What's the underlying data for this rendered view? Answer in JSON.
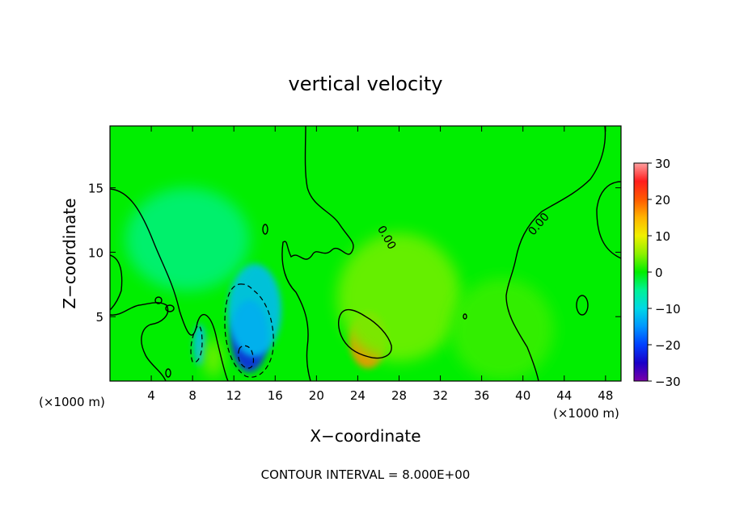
{
  "chart_data": {
    "type": "heatmap",
    "title": "vertical velocity",
    "xlabel": "X−coordinate",
    "ylabel": "Z−coordinate",
    "x_unit_left": "(×1000 m)",
    "x_unit_right": "(×1000 m)",
    "footer": "CONTOUR INTERVAL = 8.000E+00",
    "xlim": [
      0,
      49.5
    ],
    "ylim": [
      0,
      19.8
    ],
    "x_ticks": [
      4,
      8,
      12,
      16,
      20,
      24,
      28,
      32,
      36,
      40,
      44,
      48
    ],
    "y_ticks": [
      5,
      10,
      15
    ],
    "colorbar": {
      "range": [
        -30,
        30
      ],
      "ticks": [
        30,
        20,
        10,
        0,
        -10,
        -20,
        -30
      ],
      "tick_labels": [
        "30",
        "20",
        "10",
        "0",
        "−10",
        "−20",
        "−30"
      ],
      "stops": [
        {
          "v": -30,
          "color": "#7b00a8"
        },
        {
          "v": -25,
          "color": "#1a00c8"
        },
        {
          "v": -20,
          "color": "#0040ff"
        },
        {
          "v": -15,
          "color": "#0096ff"
        },
        {
          "v": -10,
          "color": "#00d7e6"
        },
        {
          "v": -5,
          "color": "#00f296"
        },
        {
          "v": 0,
          "color": "#00ee00"
        },
        {
          "v": 5,
          "color": "#8cf000"
        },
        {
          "v": 10,
          "color": "#f0f000"
        },
        {
          "v": 15,
          "color": "#ffb400"
        },
        {
          "v": 20,
          "color": "#ff5a00"
        },
        {
          "v": 25,
          "color": "#ff1e1e"
        },
        {
          "v": 30,
          "color": "#ffa0a0"
        }
      ]
    },
    "contour_labels": [
      {
        "text": "0.00",
        "x": 26.5,
        "y": 11.0,
        "angle": 60
      },
      {
        "text": "0.00",
        "x": 41.8,
        "y": 12.0,
        "angle": -50
      }
    ],
    "features": [
      {
        "x": 13.5,
        "z": 3.5,
        "value": -22,
        "sx": 1.8,
        "sz": 2.8
      },
      {
        "x": 14.0,
        "z": 5.5,
        "value": -12,
        "sx": 2.6,
        "sz": 3.6
      },
      {
        "x": 8.7,
        "z": 2.8,
        "value": -12,
        "sx": 0.6,
        "sz": 1.6
      },
      {
        "x": 7.5,
        "z": 11.0,
        "value": -4,
        "sx": 6,
        "sz": 4
      },
      {
        "x": 25.0,
        "z": 3.2,
        "value": 17,
        "sx": 1.8,
        "sz": 2.2
      },
      {
        "x": 28.0,
        "z": 6.5,
        "value": 4,
        "sx": 6,
        "sz": 5
      },
      {
        "x": 10.0,
        "z": 1.8,
        "value": 5,
        "sx": 0.8,
        "sz": 1.5
      },
      {
        "x": 38.0,
        "z": 4.0,
        "value": 2,
        "sx": 5,
        "sz": 4
      }
    ]
  }
}
